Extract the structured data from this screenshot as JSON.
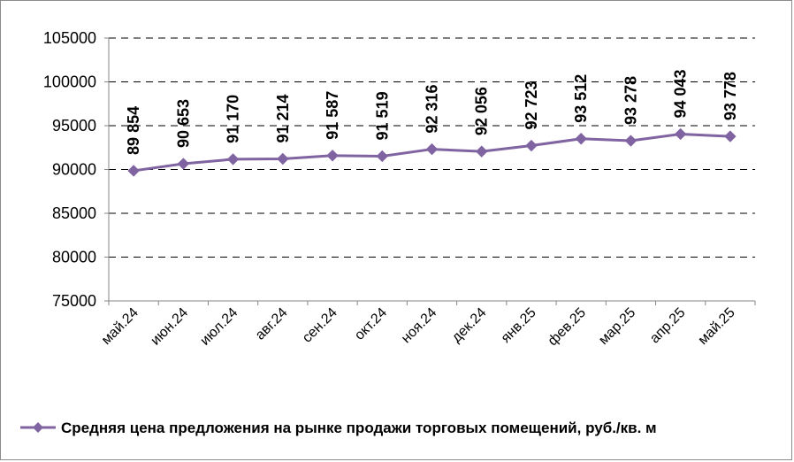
{
  "chart_data": {
    "type": "line",
    "categories": [
      "май.24",
      "июн.24",
      "июл.24",
      "авг.24",
      "сен.24",
      "окт.24",
      "ноя.24",
      "дек.24",
      "янв.25",
      "фев.25",
      "мар.25",
      "апр.25",
      "май.25"
    ],
    "series": [
      {
        "name": "Средняя цена предложения на рынке продажи торговых помещений,  руб./кв. м",
        "values": [
          89854,
          90653,
          91170,
          91214,
          91587,
          91519,
          92316,
          92056,
          92723,
          93512,
          93278,
          94043,
          93778
        ],
        "data_labels": [
          "89 854",
          "90 653",
          "91 170",
          "91 214",
          "91 587",
          "91 519",
          "92 316",
          "92 056",
          "92 723",
          "93 512",
          "93 278",
          "94 043",
          "93 778"
        ],
        "color": "#8064a2"
      }
    ],
    "ylim": [
      75000,
      105000
    ],
    "yticks": [
      75000,
      80000,
      85000,
      90000,
      95000,
      100000,
      105000
    ],
    "ytick_labels": [
      "75000",
      "80000",
      "85000",
      "90000",
      "95000",
      "100000",
      "105000"
    ],
    "grid": "horizontal dashed",
    "legend": "bottom",
    "marker": "diamond",
    "colors": {
      "series": "#8064a2",
      "grid": "#000000",
      "axis": "#868686"
    }
  }
}
